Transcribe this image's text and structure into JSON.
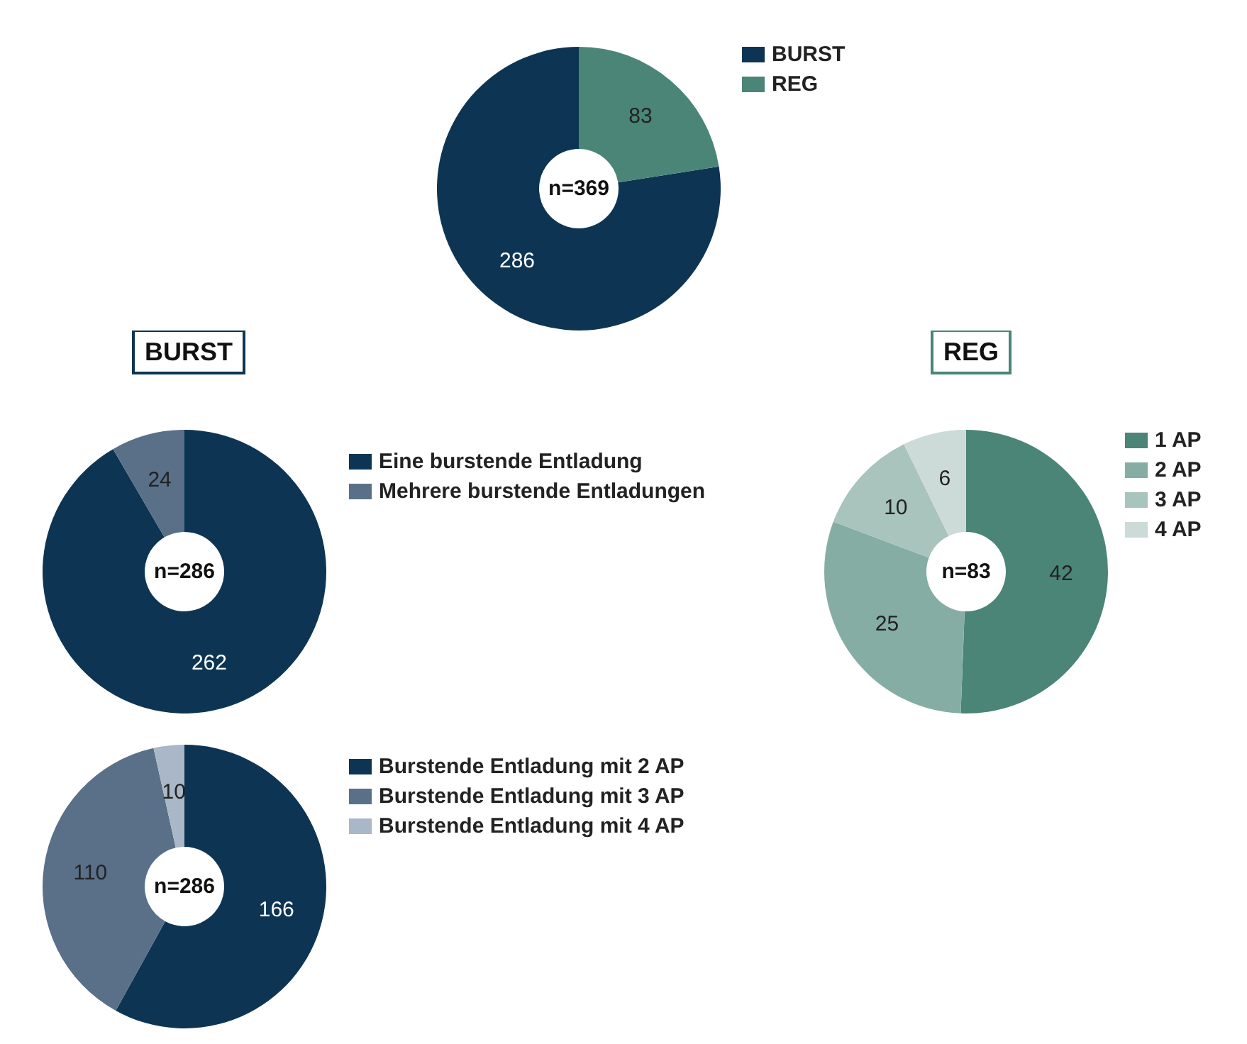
{
  "chart_data": [
    {
      "type": "donut",
      "categories": [
        "BURST",
        "REG"
      ],
      "values": [
        286,
        83
      ],
      "colors": [
        "#0d3553",
        "#4a8577"
      ],
      "data_labels": true,
      "legend": "right",
      "annotations": [
        "n=369"
      ]
    },
    {
      "type": "donut",
      "title": "BURST",
      "categories": [
        "Eine burstende Entladung",
        "Mehrere burstende Entladungen"
      ],
      "values": [
        262,
        24
      ],
      "colors": [
        "#0d3553",
        "#5a7088"
      ],
      "data_labels": true,
      "legend": "right",
      "annotations": [
        "n=286"
      ]
    },
    {
      "type": "donut",
      "title": "REG",
      "categories": [
        "1 AP",
        "2 AP",
        "3 AP",
        "4 AP"
      ],
      "values": [
        42,
        25,
        10,
        6
      ],
      "colors": [
        "#4a8577",
        "#86ada4",
        "#a9c3bd",
        "#cddbd8"
      ],
      "data_labels": true,
      "legend": "right",
      "annotations": [
        "n=83"
      ]
    },
    {
      "type": "donut",
      "categories": [
        "Burstende Entladung mit 2 AP",
        "Burstende Entladung mit 3 AP",
        "Burstende Entladung mit 4 AP"
      ],
      "values": [
        166,
        110,
        10
      ],
      "colors": [
        "#0d3553",
        "#5a7088",
        "#a9b7c6"
      ],
      "data_labels": true,
      "legend": "right",
      "annotations": [
        "n=286"
      ]
    }
  ]
}
